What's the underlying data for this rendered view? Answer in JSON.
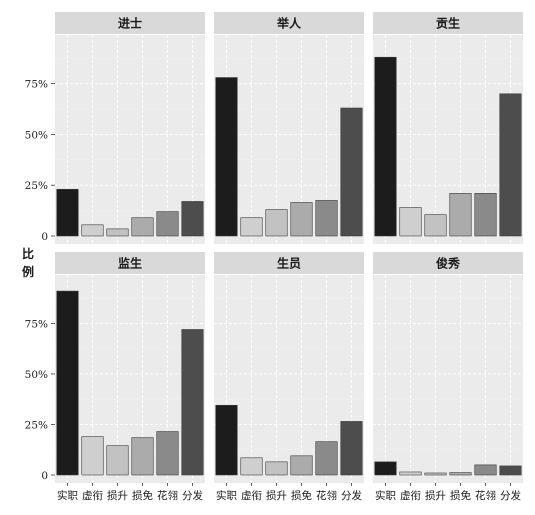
{
  "chart_data": {
    "type": "bar",
    "facet_layout": "2 rows x 3 columns",
    "ylabel": "比例",
    "xlabel": "",
    "ylim": [
      0,
      0.95
    ],
    "yticks": [
      0,
      0.25,
      0.5,
      0.75
    ],
    "ytick_labels": [
      "0",
      "25%",
      "50%",
      "75%"
    ],
    "categories": [
      "实职",
      "虚衔",
      "损升",
      "损免",
      "花翎",
      "分发"
    ],
    "category_colors": [
      "#1c1c1c",
      "#cfcfcf",
      "#c2c2c2",
      "#ababab",
      "#8a8a8a",
      "#4d4d4d"
    ],
    "grid": true,
    "legend": "none",
    "panels": [
      {
        "title": "进士",
        "values": [
          0.23,
          0.055,
          0.035,
          0.09,
          0.12,
          0.17
        ]
      },
      {
        "title": "举人",
        "values": [
          0.78,
          0.09,
          0.13,
          0.165,
          0.175,
          0.63
        ]
      },
      {
        "title": "贡生",
        "values": [
          0.88,
          0.14,
          0.105,
          0.21,
          0.21,
          0.7
        ]
      },
      {
        "title": "监生",
        "values": [
          0.91,
          0.19,
          0.145,
          0.185,
          0.215,
          0.72
        ]
      },
      {
        "title": "生员",
        "values": [
          0.345,
          0.085,
          0.065,
          0.095,
          0.165,
          0.265
        ]
      },
      {
        "title": "俊秀",
        "values": [
          0.065,
          0.015,
          0.01,
          0.012,
          0.05,
          0.045
        ]
      }
    ]
  }
}
